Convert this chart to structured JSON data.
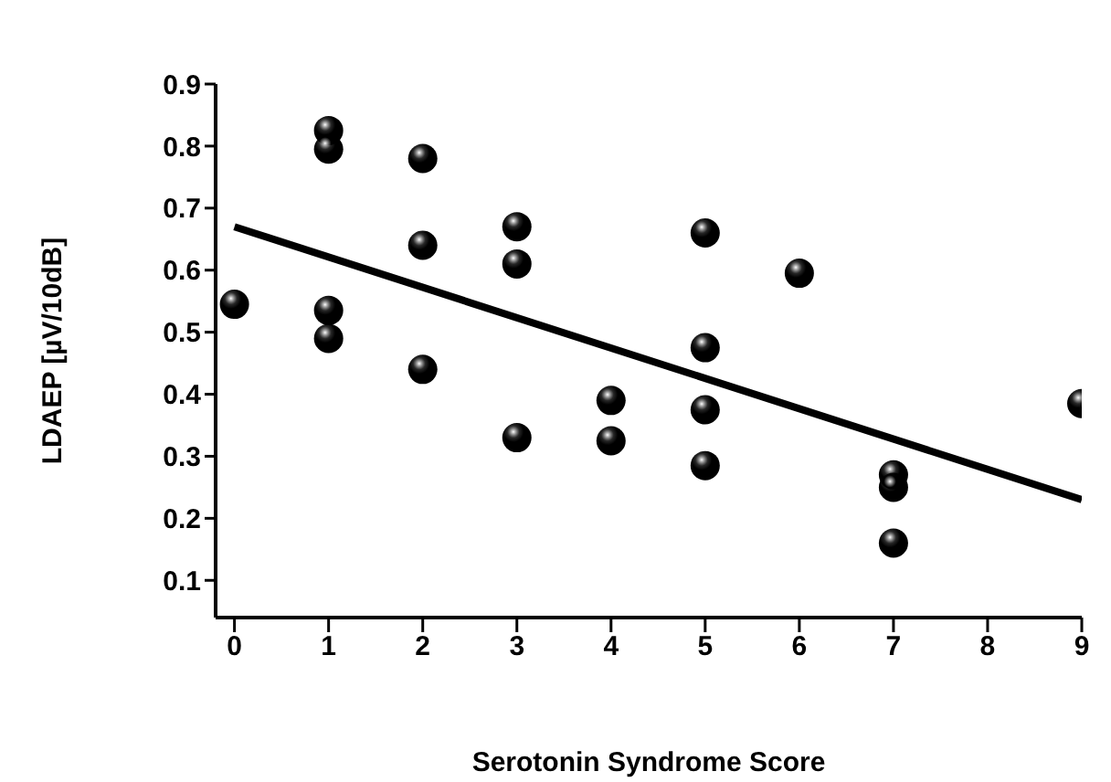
{
  "chart_data": {
    "type": "scatter",
    "xlabel": "Serotonin Syndrome Score",
    "ylabel": "LDAEP [µV/10dB]",
    "xlim": [
      -0.2,
      9
    ],
    "ylim": [
      0.04,
      0.9
    ],
    "xticks": [
      0,
      1,
      2,
      3,
      4,
      5,
      6,
      7,
      8,
      9
    ],
    "yticks": [
      0.1,
      0.2,
      0.3,
      0.4,
      0.5,
      0.6,
      0.7,
      0.8,
      0.9
    ],
    "grid": false,
    "legend": false,
    "marker": "circle",
    "series": [
      {
        "color": "#000000",
        "x": [
          0,
          1,
          1,
          1,
          1,
          2,
          2,
          2,
          3,
          3,
          3,
          4,
          4,
          5,
          5,
          5,
          5,
          6,
          7,
          7,
          7,
          9
        ],
        "values": [
          0.545,
          0.825,
          0.795,
          0.535,
          0.49,
          0.78,
          0.64,
          0.44,
          0.67,
          0.61,
          0.33,
          0.39,
          0.325,
          0.66,
          0.475,
          0.375,
          0.285,
          0.595,
          0.27,
          0.25,
          0.16,
          0.385
        ]
      },
      {
        "type": "line",
        "color": "#000000",
        "marker": "none",
        "x": [
          0,
          9
        ],
        "values": [
          0.67,
          0.23
        ]
      }
    ]
  }
}
